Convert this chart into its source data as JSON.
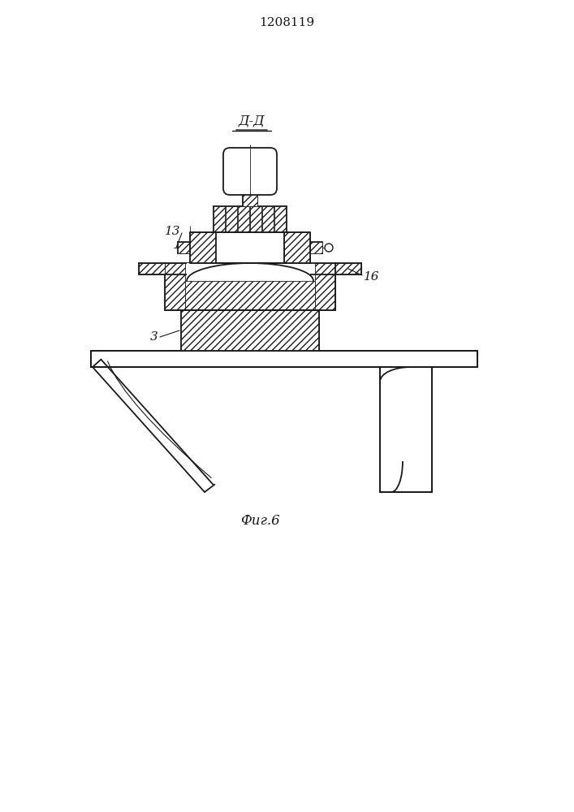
{
  "title": "1208119",
  "label_dd": "Д-Д",
  "label_fig": "Фиг.6",
  "label_3": "3",
  "label_13": "13",
  "label_16": "16",
  "bg_color": "#ffffff",
  "line_color": "#1a1a1a",
  "lw": 1.3,
  "tlw": 0.8
}
